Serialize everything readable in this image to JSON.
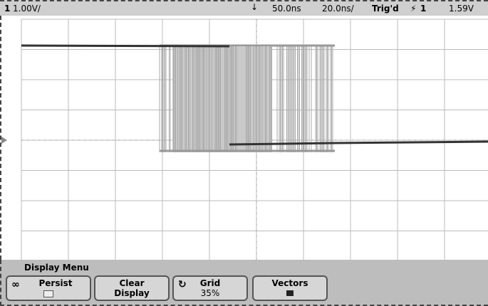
{
  "status_bar": {
    "channel": "1",
    "scale": "1.00V/",
    "delay": "50.0ns",
    "timebase": "20.0ns/",
    "trigger_state": "Trig'd",
    "trigger_source": "1",
    "trigger_level": "1.59V"
  },
  "menu": {
    "title": "Display Menu",
    "buttons": [
      {
        "label": "Persist"
      },
      {
        "label": "Clear Display"
      },
      {
        "label": "Grid",
        "value": "35%"
      },
      {
        "label": "Vectors"
      }
    ]
  }
}
